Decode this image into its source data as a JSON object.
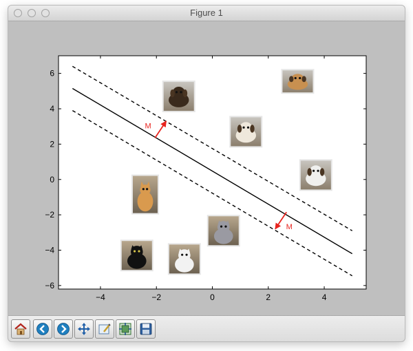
{
  "window": {
    "title": "Figure 1"
  },
  "toolbar": {
    "buttons": [
      {
        "name": "home-button",
        "icon": "home-icon"
      },
      {
        "name": "back-button",
        "icon": "back-arrow-icon"
      },
      {
        "name": "forward-button",
        "icon": "forward-arrow-icon"
      },
      {
        "name": "pan-button",
        "icon": "pan-arrows-icon"
      },
      {
        "name": "zoom-button",
        "icon": "zoom-rectangle-icon"
      },
      {
        "name": "configure-subplots-button",
        "icon": "subplots-icon"
      },
      {
        "name": "save-button",
        "icon": "floppy-disk-icon"
      }
    ]
  },
  "chart_data": {
    "type": "scatter",
    "title": "",
    "xlabel": "",
    "ylabel": "",
    "xlim": [
      -5.5,
      5.5
    ],
    "ylim": [
      -6.2,
      7.0
    ],
    "x_ticks": [
      -4,
      -2,
      0,
      2,
      4
    ],
    "y_ticks": [
      -6,
      -4,
      -2,
      0,
      2,
      4,
      6
    ],
    "x_tick_labels": [
      "−4",
      "−2",
      "0",
      "2",
      "4"
    ],
    "y_tick_labels": [
      "−6",
      "−4",
      "−2",
      "0",
      "2",
      "4",
      "6"
    ],
    "grid": false,
    "legend": "none",
    "lines": [
      {
        "role": "decision-boundary",
        "style": "solid",
        "color": "#000000",
        "points": [
          [
            -5,
            5.15
          ],
          [
            5,
            -4.2
          ]
        ]
      },
      {
        "role": "margin-upper",
        "style": "dashed",
        "color": "#000000",
        "points": [
          [
            -5,
            6.4
          ],
          [
            5,
            -2.9
          ]
        ]
      },
      {
        "role": "margin-lower",
        "style": "dashed",
        "color": "#000000",
        "points": [
          [
            -5,
            3.9
          ],
          [
            5,
            -5.45
          ]
        ]
      }
    ],
    "margin_arrows": [
      {
        "label": "M",
        "color": "#e8231e",
        "from": [
          -2.05,
          2.35
        ],
        "to": [
          -1.65,
          3.3
        ],
        "label_at": [
          -2.3,
          3.05
        ]
      },
      {
        "label": "M",
        "color": "#e8231e",
        "from": [
          2.65,
          -1.85
        ],
        "to": [
          2.25,
          -2.8
        ],
        "label_at": [
          2.75,
          -2.65
        ]
      }
    ],
    "image_points": [
      {
        "class": "dog",
        "name": "dachshund-photo",
        "x": -1.2,
        "y": 4.7
      },
      {
        "class": "dog",
        "name": "lying-puppy-photo",
        "x": 3.05,
        "y": 5.55
      },
      {
        "class": "dog",
        "name": "chihuahua-photo",
        "x": 1.2,
        "y": 2.7
      },
      {
        "class": "dog",
        "name": "shih-tzu-photo",
        "x": 3.7,
        "y": 0.25
      },
      {
        "class": "cat",
        "name": "orange-cat-photo",
        "x": -2.4,
        "y": -0.85
      },
      {
        "class": "cat",
        "name": "grey-kitten-photo",
        "x": 0.4,
        "y": -2.9
      },
      {
        "class": "cat",
        "name": "black-cat-photo",
        "x": -2.7,
        "y": -4.3
      },
      {
        "class": "cat",
        "name": "white-kitten-photo",
        "x": -1.0,
        "y": -4.5
      }
    ]
  }
}
